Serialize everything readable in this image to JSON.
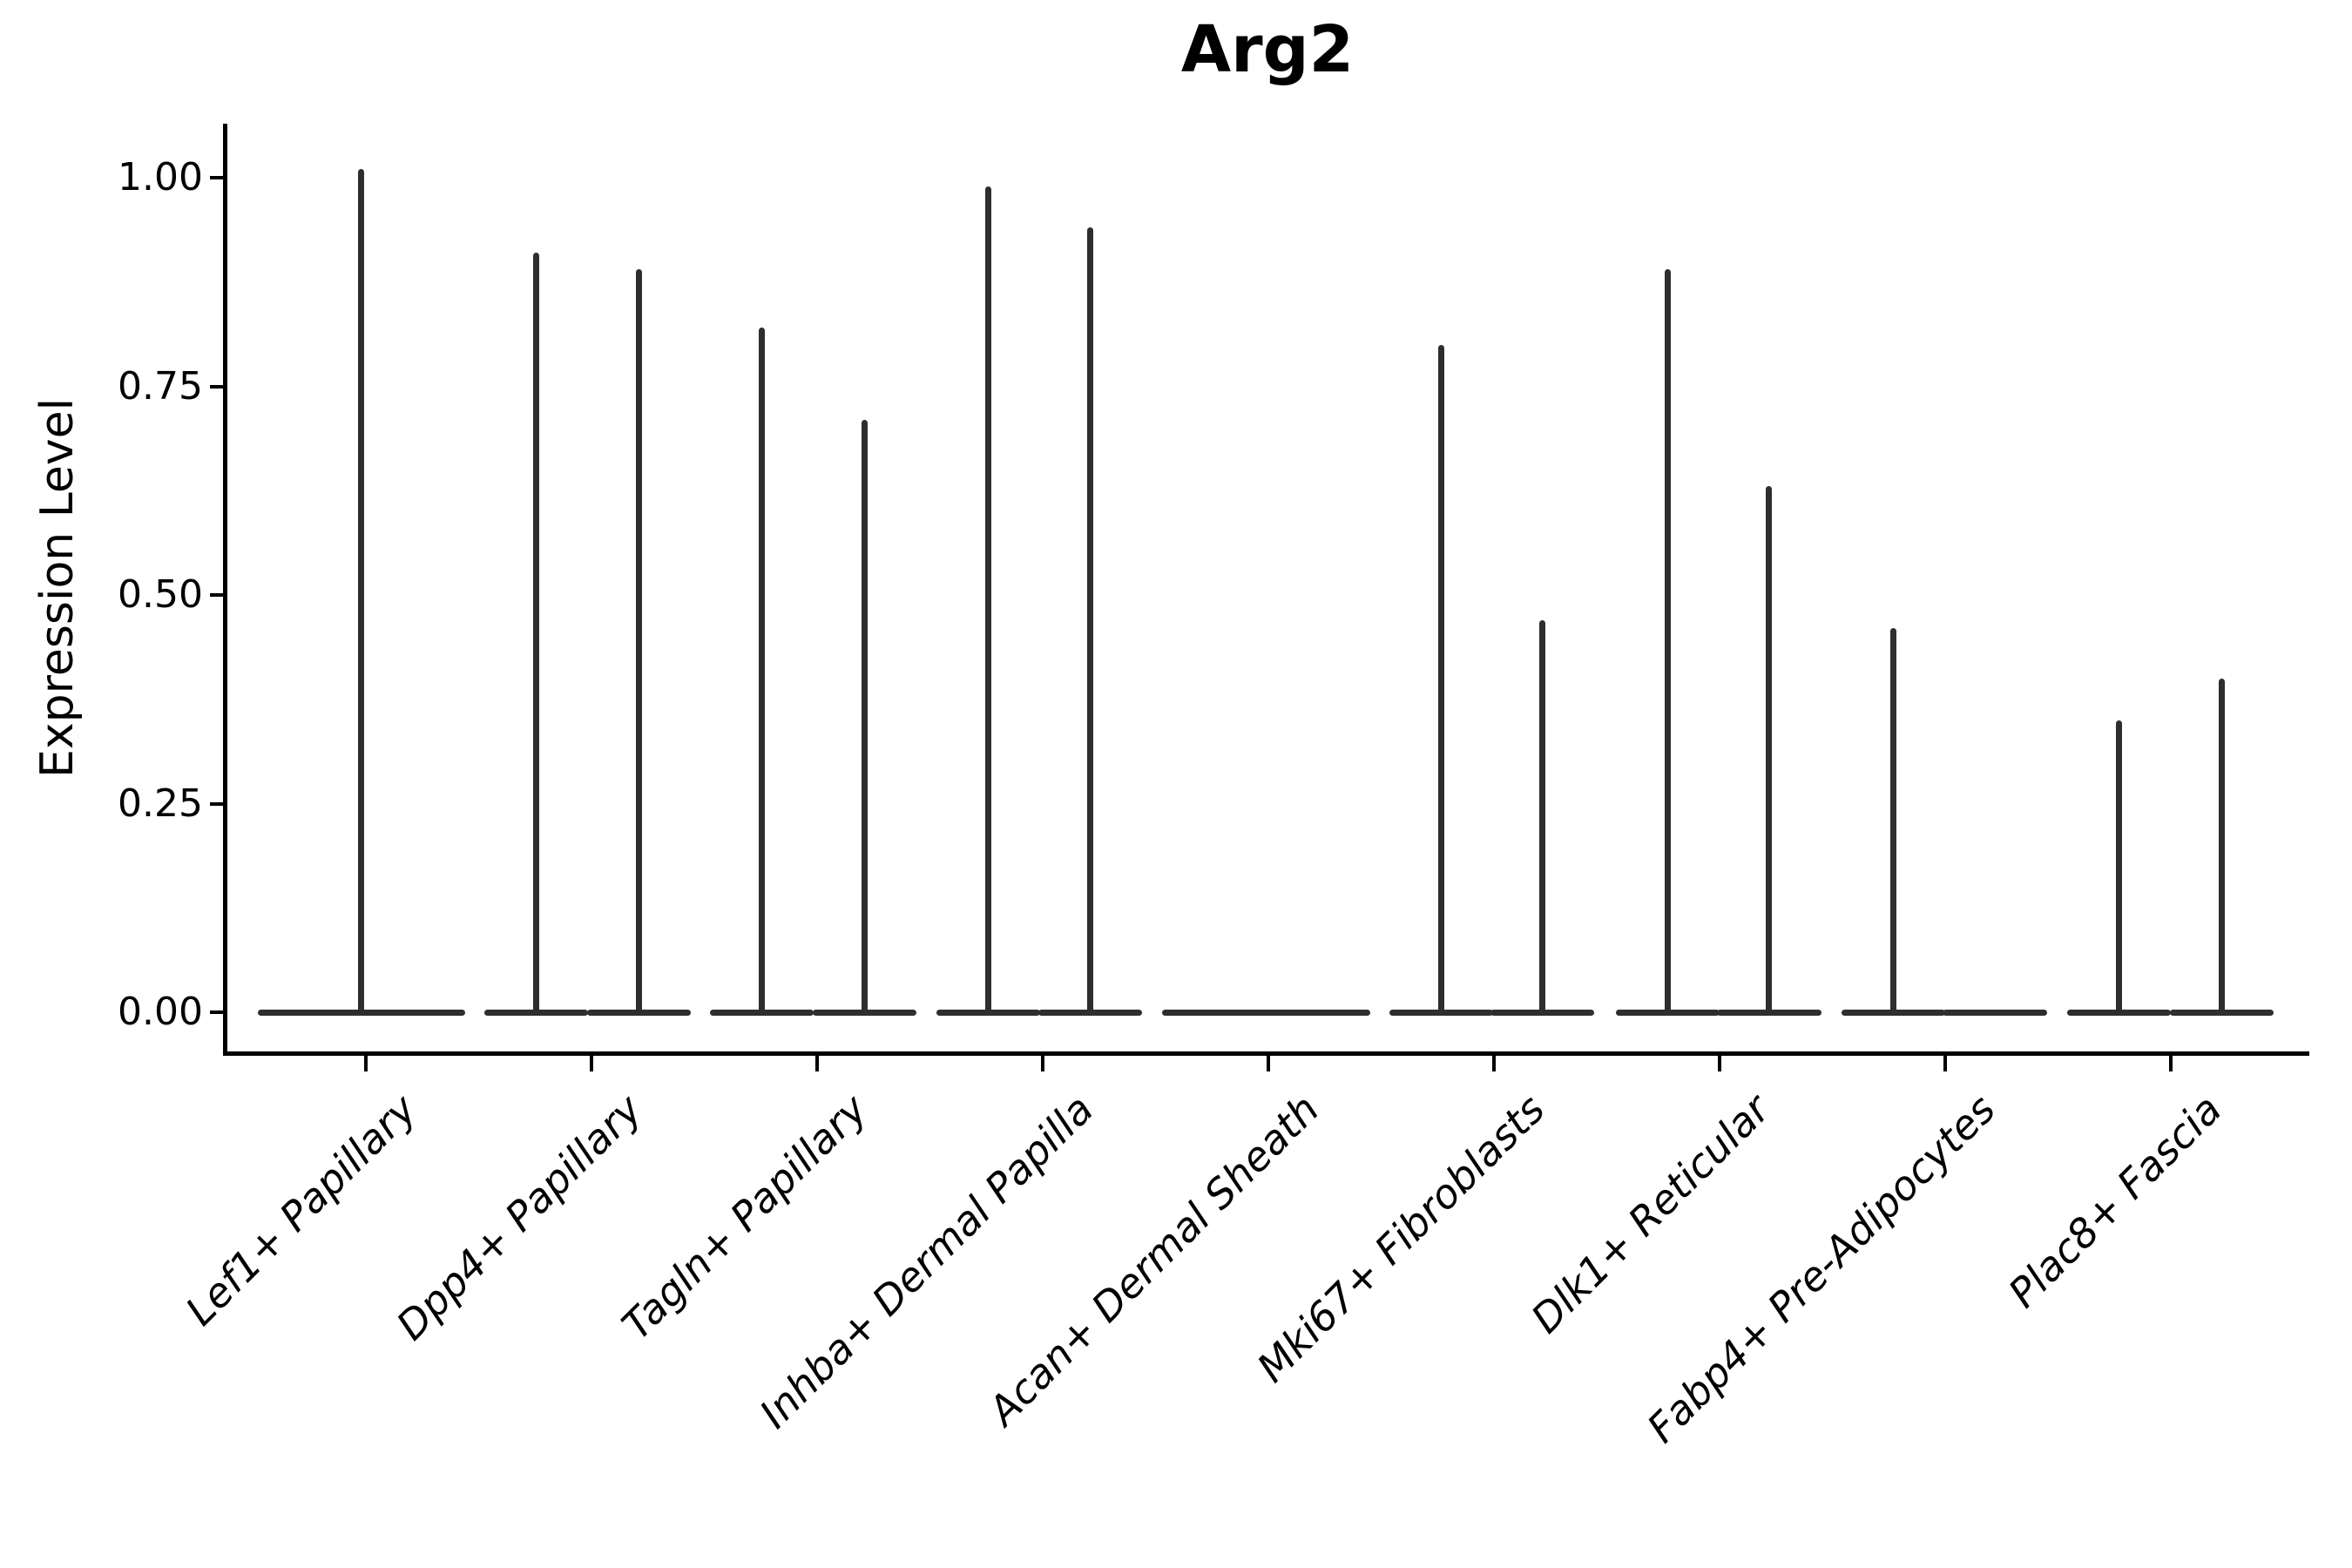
{
  "title": "Arg2",
  "y_axis": {
    "label": "Expression Level",
    "tick_labels": [
      "0.00",
      "0.25",
      "0.50",
      "0.75",
      "1.00"
    ]
  },
  "x_axis": {
    "categories": [
      "Lef1+ Papillary",
      "Dpp4+ Papillary",
      "Tagln+ Papillary",
      "Inhba+ Dermal Papilla",
      "Acan+ Dermal Sheath",
      "Mki67+ Fibroblasts",
      "Dlk1+ Reticular",
      "Fabp4+ Pre-Adipocytes",
      "Plac8+ Fascia"
    ]
  },
  "colors": {
    "violin": "#2e2e2e",
    "axis": "#000000",
    "text": "#000000",
    "background": "#ffffff"
  },
  "chart_data": {
    "type": "violin",
    "title": "Arg2",
    "xlabel": "",
    "ylabel": "Expression Level",
    "ylim": [
      -0.05,
      1.06
    ],
    "yticks": [
      0.0,
      0.25,
      0.5,
      0.75,
      1.0
    ],
    "ytick_labels": [
      "0.00",
      "0.25",
      "0.50",
      "0.75",
      "1.00"
    ],
    "grid": false,
    "legend": false,
    "categories": [
      "Lef1+ Papillary",
      "Dpp4+ Papillary",
      "Tagln+ Papillary",
      "Inhba+ Dermal Papilla",
      "Acan+ Dermal Sheath",
      "Mki67+ Fibroblasts",
      "Dlk1+ Reticular",
      "Fabp4+ Pre-Adipocytes",
      "Plac8+ Fascia"
    ],
    "violins": [
      {
        "category": "Lef1+ Papillary",
        "offset": -0.02,
        "half_width": 0.46,
        "max_expression": 1.01
      },
      {
        "category": "Dpp4+ Papillary",
        "offset": -0.245,
        "half_width": 0.23,
        "max_expression": 0.91
      },
      {
        "category": "Dpp4+ Papillary",
        "offset": 0.21,
        "half_width": 0.23,
        "max_expression": 0.89
      },
      {
        "category": "Tagln+ Papillary",
        "offset": -0.245,
        "half_width": 0.23,
        "max_expression": 0.82
      },
      {
        "category": "Tagln+ Papillary",
        "offset": 0.21,
        "half_width": 0.23,
        "max_expression": 0.71
      },
      {
        "category": "Inhba+ Dermal Papilla",
        "offset": -0.24,
        "half_width": 0.23,
        "max_expression": 0.99
      },
      {
        "category": "Inhba+ Dermal Papilla",
        "offset": 0.21,
        "half_width": 0.23,
        "max_expression": 0.94
      },
      {
        "category": "Acan+ Dermal Sheath",
        "offset": -0.01,
        "half_width": 0.46,
        "max_expression": 0.0
      },
      {
        "category": "Mki67+ Fibroblasts",
        "offset": -0.235,
        "half_width": 0.23,
        "max_expression": 0.8
      },
      {
        "category": "Mki67+ Fibroblasts",
        "offset": 0.215,
        "half_width": 0.23,
        "max_expression": 0.47
      },
      {
        "category": "Dlk1+ Reticular",
        "offset": -0.23,
        "half_width": 0.23,
        "max_expression": 0.89
      },
      {
        "category": "Dlk1+ Reticular",
        "offset": 0.22,
        "half_width": 0.23,
        "max_expression": 0.63
      },
      {
        "category": "Fabp4+ Pre-Adipocytes",
        "offset": -0.23,
        "half_width": 0.23,
        "max_expression": 0.46
      },
      {
        "category": "Fabp4+ Pre-Adipocytes",
        "offset": 0.22,
        "half_width": 0.23,
        "max_expression": 0.0
      },
      {
        "category": "Plac8+ Fascia",
        "offset": -0.23,
        "half_width": 0.23,
        "max_expression": 0.35
      },
      {
        "category": "Plac8+ Fascia",
        "offset": 0.225,
        "half_width": 0.23,
        "max_expression": 0.4
      }
    ]
  }
}
